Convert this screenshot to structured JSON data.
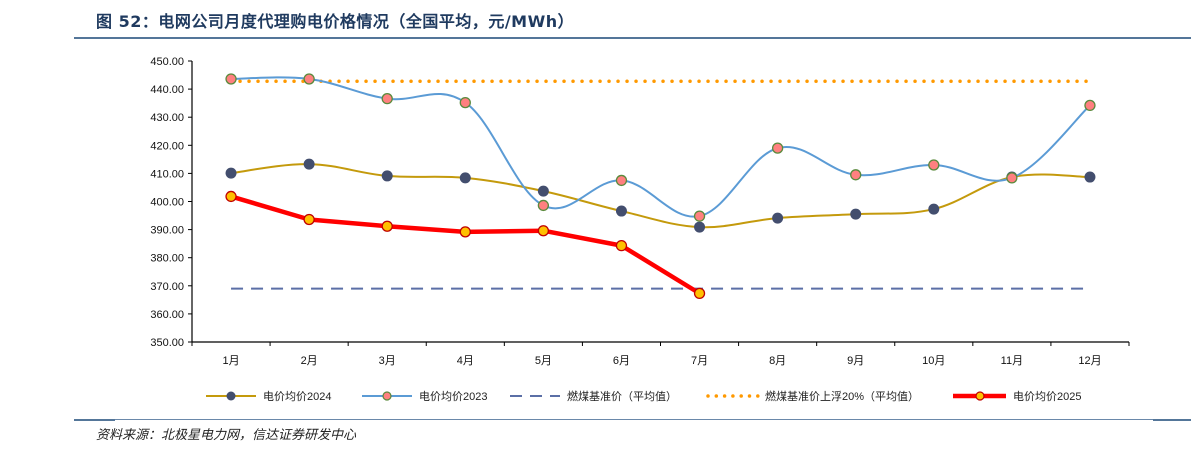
{
  "header": {
    "title": "图 52：电网公司月度代理购电价格情况（全国平均，元/MWh）"
  },
  "footer": {
    "source": "资料来源：北极星电力网，信达证券研发中心"
  },
  "colors": {
    "title": "#1f3a5f",
    "rule": "#547699",
    "series_2024_line": "#c49a0c",
    "series_2024_marker": "#434e6e",
    "series_2023_line": "#5b9bd5",
    "series_2023_marker_fill": "#ff8080",
    "series_2023_marker_stroke": "#5a8a3c",
    "coal_benchmark": "#5b6fa6",
    "coal_benchmark_plus20": "#ff9900",
    "series_2025_line": "#ff0000",
    "series_2025_marker_fill": "#ffc000",
    "series_2025_marker_stroke": "#c00000"
  },
  "chart_data": {
    "type": "line",
    "title": "电网公司月度代理购电价格情况（全国平均，元/MWh）",
    "xlabel": "",
    "ylabel": "",
    "ylim": [
      350,
      450
    ],
    "yticks": [
      "350.00",
      "360.00",
      "370.00",
      "380.00",
      "390.00",
      "400.00",
      "410.00",
      "420.00",
      "430.00",
      "440.00",
      "450.00"
    ],
    "categories": [
      "1月",
      "2月",
      "3月",
      "4月",
      "5月",
      "6月",
      "7月",
      "8月",
      "9月",
      "10月",
      "11月",
      "12月"
    ],
    "grid": false,
    "legend_position": "bottom",
    "series": [
      {
        "name": "电价均价2024",
        "style": "smooth-line-marker",
        "values": [
          410.1,
          413.3,
          409.1,
          408.4,
          403.7,
          396.6,
          390.9,
          394.1,
          395.5,
          397.3,
          408.7,
          408.7
        ]
      },
      {
        "name": "电价均价2023",
        "style": "smooth-line-marker",
        "values": [
          443.6,
          443.6,
          436.6,
          435.2,
          398.6,
          407.5,
          394.8,
          419.0,
          409.5,
          413.0,
          408.4,
          434.2
        ]
      },
      {
        "name": "燃煤基准价（平均值）",
        "style": "dashed",
        "values": [
          369.0,
          369.0,
          369.0,
          369.0,
          369.0,
          369.0,
          369.0,
          369.0,
          369.0,
          369.0,
          369.0,
          369.0
        ]
      },
      {
        "name": "燃煤基准价上浮20%（平均值）",
        "style": "dotted",
        "values": [
          442.8,
          442.8,
          442.8,
          442.8,
          442.8,
          442.8,
          442.8,
          442.8,
          442.8,
          442.8,
          442.8,
          442.8
        ]
      },
      {
        "name": "电价均价2025",
        "style": "thick-line-marker",
        "values": [
          401.8,
          393.6,
          391.2,
          389.2,
          389.6,
          384.3,
          367.3
        ]
      }
    ]
  }
}
